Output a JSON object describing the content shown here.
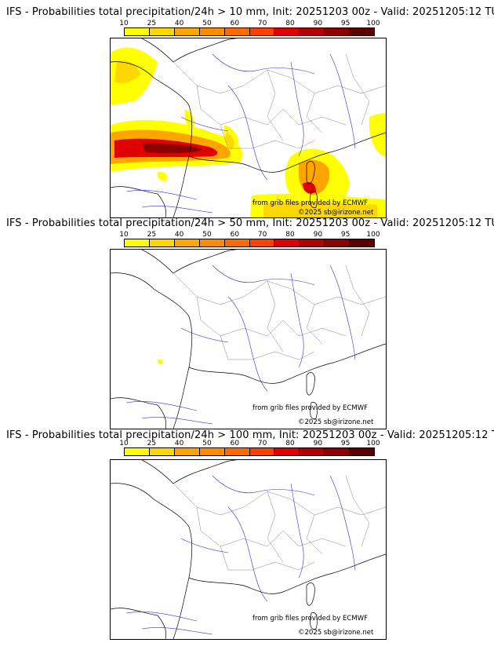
{
  "colorbar": {
    "ticks": [
      "10",
      "25",
      "40",
      "50",
      "60",
      "70",
      "80",
      "90",
      "95",
      "100"
    ],
    "colors": [
      "#ffff00",
      "#ffd700",
      "#ffa500",
      "#ff8c00",
      "#ff6a00",
      "#ff4000",
      "#e00000",
      "#b00000",
      "#8b0000",
      "#5a0000"
    ]
  },
  "panels": [
    {
      "title": "IFS - Probabilities total precipitation/24h > 10 mm, Init: 20251203 00z - Valid: 20251205:12 TU",
      "source": "from grib files provided by ECMWF",
      "copyright": "©2025 sb@irizone.net"
    },
    {
      "title": "IFS - Probabilities total precipitation/24h > 50 mm, Init: 20251203 00z - Valid: 20251205:12 TU",
      "source": "from grib files provided by ECMWF",
      "copyright": "©2025 sb@irizone.net"
    },
    {
      "title": "IFS - Probabilities total precipitation/24h > 100 mm, Init: 20251203 00z - Valid: 20251205:12 TU",
      "source": "from grib files provided by ECMWF",
      "copyright": "©2025 sb@irizone.net"
    }
  ]
}
